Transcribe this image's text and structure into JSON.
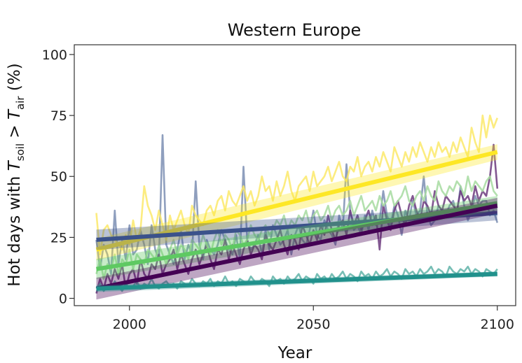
{
  "chart_data": {
    "type": "line",
    "title": "Western Europe",
    "xlabel": "Year",
    "ylabel": {
      "prefix": "Hot days with ",
      "var1": "T",
      "sub1": "soil",
      "middle": " > ",
      "var2": "T",
      "sub2": "air",
      "suffix": " (%)"
    },
    "xlim": [
      1985,
      2105
    ],
    "ylim": [
      -3,
      104
    ],
    "xticks": [
      2000,
      2050,
      2100
    ],
    "yticks": [
      0,
      25,
      50,
      75,
      100
    ],
    "grid": false,
    "legend": "none",
    "x_start": 1991,
    "x_end": 2100,
    "series": [
      {
        "color": "#7b8eb3",
        "trend_start": 24,
        "trend_end": 35,
        "values": [
          24,
          12,
          22,
          18,
          10,
          36,
          14,
          24,
          16,
          30,
          18,
          20,
          28,
          22,
          14,
          30,
          20,
          16,
          67,
          22,
          18,
          14,
          20,
          28,
          16,
          22,
          18,
          48,
          22,
          16,
          24,
          20,
          18,
          22,
          28,
          24,
          20,
          18,
          26,
          16,
          54,
          24,
          20,
          22,
          26,
          18,
          28,
          20,
          30,
          26,
          22,
          24,
          28,
          18,
          26,
          30,
          24,
          22,
          28,
          36,
          26,
          24,
          32,
          28,
          26,
          22,
          34,
          28,
          55,
          36,
          28,
          30,
          26,
          34,
          28,
          36,
          30,
          32,
          44,
          34,
          30,
          38,
          34,
          26,
          36,
          32,
          40,
          34,
          36,
          50,
          34,
          30,
          32,
          38,
          36,
          34,
          38,
          40,
          34,
          46,
          38,
          32,
          36,
          42,
          38,
          40,
          40,
          34,
          36,
          31
        ]
      },
      {
        "color": "#fbe96a",
        "trend_start": 20,
        "trend_end": 60,
        "values": [
          35,
          18,
          28,
          30,
          26,
          24,
          22,
          20,
          26,
          22,
          32,
          24,
          28,
          46,
          38,
          34,
          28,
          36,
          30,
          24,
          34,
          28,
          32,
          36,
          30,
          26,
          38,
          34,
          32,
          30,
          36,
          38,
          34,
          40,
          42,
          36,
          44,
          40,
          38,
          42,
          46,
          40,
          44,
          38,
          42,
          50,
          44,
          46,
          40,
          48,
          42,
          46,
          52,
          44,
          40,
          46,
          48,
          50,
          44,
          52,
          46,
          48,
          50,
          54,
          48,
          52,
          56,
          50,
          48,
          54,
          52,
          58,
          50,
          54,
          56,
          52,
          58,
          54,
          60,
          56,
          52,
          62,
          58,
          54,
          60,
          56,
          62,
          58,
          64,
          60,
          56,
          62,
          58,
          64,
          60,
          62,
          58,
          64,
          60,
          66,
          62,
          58,
          70,
          64,
          60,
          75,
          66,
          75,
          70,
          74
        ]
      },
      {
        "color": "#6c3a7e",
        "trend_start": 5,
        "trend_end": 40,
        "values": [
          2,
          8,
          4,
          10,
          6,
          12,
          8,
          14,
          4,
          10,
          12,
          6,
          16,
          10,
          8,
          14,
          12,
          18,
          10,
          14,
          16,
          20,
          12,
          18,
          14,
          10,
          16,
          20,
          14,
          18,
          22,
          16,
          12,
          20,
          18,
          24,
          16,
          22,
          18,
          14,
          20,
          24,
          18,
          22,
          20,
          16,
          26,
          22,
          20,
          24,
          28,
          22,
          18,
          26,
          24,
          20,
          30,
          26,
          22,
          28,
          24,
          30,
          26,
          34,
          28,
          24,
          30,
          32,
          26,
          36,
          30,
          34,
          28,
          32,
          36,
          30,
          34,
          20,
          38,
          32,
          28,
          36,
          40,
          34,
          30,
          38,
          42,
          36,
          32,
          40,
          38,
          34,
          44,
          38,
          36,
          42,
          40,
          38,
          36,
          44,
          40,
          42,
          38,
          46,
          40,
          44,
          42,
          50,
          63,
          45
        ]
      },
      {
        "color": "#a6dba0",
        "trend_start": 12,
        "trend_end": 40,
        "values": [
          10,
          16,
          8,
          14,
          12,
          18,
          10,
          16,
          14,
          20,
          12,
          18,
          16,
          14,
          20,
          18,
          16,
          22,
          18,
          14,
          20,
          24,
          18,
          22,
          20,
          16,
          24,
          22,
          20,
          26,
          22,
          18,
          24,
          28,
          22,
          26,
          24,
          20,
          28,
          26,
          22,
          24,
          30,
          26,
          24,
          28,
          30,
          26,
          28,
          32,
          30,
          34,
          28,
          32,
          30,
          34,
          32,
          36,
          30,
          34,
          36,
          32,
          34,
          38,
          32,
          36,
          38,
          34,
          36,
          40,
          34,
          38,
          42,
          36,
          38,
          40,
          36,
          42,
          38,
          40,
          44,
          38,
          40,
          42,
          46,
          40,
          38,
          42,
          44,
          40,
          46,
          42,
          40,
          48,
          44,
          42,
          46,
          44,
          48,
          46,
          42,
          50,
          44,
          48,
          46,
          44,
          48,
          50,
          44,
          42
        ]
      },
      {
        "color": "#5fb3a8",
        "trend_start": 4,
        "trend_end": 10,
        "values": [
          4,
          6,
          3,
          5,
          4,
          7,
          5,
          3,
          6,
          4,
          5,
          7,
          4,
          6,
          5,
          8,
          5,
          4,
          6,
          7,
          5,
          6,
          4,
          7,
          6,
          5,
          8,
          6,
          5,
          7,
          6,
          8,
          5,
          7,
          6,
          9,
          6,
          7,
          5,
          8,
          7,
          6,
          9,
          7,
          6,
          8,
          7,
          5,
          9,
          7,
          8,
          6,
          9,
          7,
          8,
          10,
          7,
          9,
          8,
          6,
          10,
          8,
          9,
          7,
          10,
          8,
          9,
          11,
          8,
          10,
          9,
          7,
          11,
          9,
          10,
          8,
          11,
          9,
          10,
          12,
          9,
          11,
          10,
          8,
          12,
          10,
          11,
          9,
          12,
          10,
          11,
          13,
          10,
          12,
          11,
          9,
          13,
          11,
          10,
          12,
          11,
          13,
          10,
          12,
          11,
          9,
          12,
          11,
          10,
          12
        ]
      }
    ],
    "trends": [
      {
        "color": "#fde725",
        "start": 20,
        "end": 60,
        "band": 3.2
      },
      {
        "color": "#3b528b",
        "start": 24,
        "end": 35,
        "band": 3.0
      },
      {
        "color": "#5ec962",
        "start": 12,
        "end": 39,
        "band": 3.0
      },
      {
        "color": "#440154",
        "start": 4,
        "end": 38,
        "band": 3.2
      },
      {
        "color": "#21918c",
        "start": 4,
        "end": 10,
        "band": 1.0
      }
    ]
  }
}
